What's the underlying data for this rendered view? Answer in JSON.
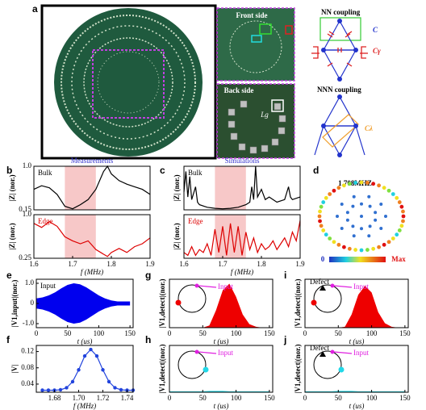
{
  "figure": {
    "panel_labels": [
      "a",
      "b",
      "c",
      "d",
      "e",
      "f",
      "g",
      "h",
      "i",
      "j"
    ],
    "photo_labels": [
      "Front side",
      "Back side",
      "Lg"
    ],
    "diagram_labels": [
      "NN coupling",
      "NNN coupling",
      "C",
      "Cγ",
      "Cλ"
    ],
    "d_title": "1.708MHZ",
    "colorbar_labels": [
      "0",
      "Max"
    ]
  },
  "chart_data": [
    {
      "type": "line",
      "title": "Measurements",
      "title_color": "#3333cc",
      "annotation": "Bulk",
      "annotation_color": "#000000",
      "ylabel": "|Z| (nor.)",
      "color": "#000000",
      "highlight": [
        1.68,
        1.76
      ],
      "highlight_color": "#f7c8c8",
      "x": [
        1.6,
        1.62,
        1.64,
        1.66,
        1.68,
        1.7,
        1.72,
        1.74,
        1.76,
        1.78,
        1.79,
        1.8,
        1.82,
        1.84,
        1.86,
        1.88,
        1.9
      ],
      "values": [
        0.55,
        0.62,
        0.58,
        0.45,
        0.22,
        0.17,
        0.25,
        0.35,
        0.55,
        0.9,
        1.0,
        0.85,
        0.72,
        0.65,
        0.6,
        0.55,
        0.45
      ],
      "xlim": [
        1.6,
        1.9
      ],
      "ylim": [
        0.15,
        1.0
      ],
      "yticks": [
        0.15,
        {
          "value": 1.0,
          "label": "1.0"
        }
      ]
    },
    {
      "type": "line",
      "annotation": "Edge",
      "annotation_color": "#dd0000",
      "ylabel": "|Z| (nor.)",
      "xlabel": "f (MHz)",
      "color": "#dd0000",
      "highlight": [
        1.68,
        1.76
      ],
      "highlight_color": "#f7c8c8",
      "x": [
        1.6,
        1.62,
        1.64,
        1.66,
        1.68,
        1.7,
        1.72,
        1.74,
        1.76,
        1.78,
        1.79,
        1.8,
        1.82,
        1.84,
        1.86,
        1.88,
        1.9
      ],
      "values": [
        0.85,
        0.78,
        0.88,
        0.8,
        0.62,
        0.55,
        0.5,
        0.55,
        0.4,
        0.32,
        0.28,
        0.35,
        0.42,
        0.35,
        0.45,
        0.5,
        0.6
      ],
      "xlim": [
        1.6,
        1.9
      ],
      "ylim": [
        0.25,
        1.0
      ],
      "yticks": [
        0.25,
        {
          "value": 1.0,
          "label": "1.0"
        }
      ],
      "xticks": [
        1.6,
        1.7,
        1.8,
        1.9
      ]
    },
    {
      "type": "line",
      "title": "Simulations",
      "title_color": "#3333cc",
      "annotation": "Bulk",
      "annotation_color": "#000000",
      "ylabel": "|Z| (nor.)",
      "color": "#000000",
      "highlight": [
        1.68,
        1.76
      ],
      "highlight_color": "#f7c8c8",
      "x": [
        1.6,
        1.605,
        1.61,
        1.615,
        1.62,
        1.63,
        1.635,
        1.64,
        1.66,
        1.68,
        1.7,
        1.72,
        1.74,
        1.76,
        1.77,
        1.775,
        1.78,
        1.785,
        1.79,
        1.8,
        1.81,
        1.82,
        1.84,
        1.86,
        1.87,
        1.875,
        1.88,
        1.9
      ],
      "values": [
        0.5,
        0.9,
        0.4,
        0.8,
        0.35,
        0.6,
        0.3,
        0.25,
        0.2,
        0.18,
        0.17,
        0.18,
        0.2,
        0.25,
        0.3,
        0.6,
        0.35,
        1.0,
        0.4,
        0.55,
        0.35,
        0.4,
        0.3,
        0.35,
        0.6,
        0.4,
        0.35,
        0.4
      ],
      "xlim": [
        1.6,
        1.9
      ],
      "ylim": [
        0.15,
        1.0
      ]
    },
    {
      "type": "line",
      "annotation": "Edge",
      "annotation_color": "#dd0000",
      "ylabel": "|Z| (nor.)",
      "xlabel": "f (MHz)",
      "color": "#dd0000",
      "highlight": [
        1.68,
        1.76
      ],
      "highlight_color": "#f7c8c8",
      "x": [
        1.6,
        1.61,
        1.62,
        1.63,
        1.64,
        1.65,
        1.66,
        1.67,
        1.68,
        1.69,
        1.7,
        1.71,
        1.72,
        1.73,
        1.74,
        1.75,
        1.76,
        1.77,
        1.78,
        1.79,
        1.8,
        1.81,
        1.82,
        1.83,
        1.84,
        1.85,
        1.86,
        1.87,
        1.88,
        1.89,
        1.9
      ],
      "values": [
        0.35,
        0.3,
        0.45,
        0.3,
        0.4,
        0.35,
        0.5,
        0.3,
        0.75,
        0.35,
        0.8,
        0.3,
        0.85,
        0.35,
        0.8,
        0.3,
        0.7,
        0.4,
        0.6,
        0.35,
        0.5,
        0.4,
        0.45,
        0.55,
        0.4,
        0.5,
        0.6,
        0.45,
        0.7,
        0.55,
        0.9
      ],
      "xlim": [
        1.6,
        1.9
      ],
      "ylim": [
        0.25,
        1.0
      ],
      "xticks": [
        1.6,
        1.7,
        1.8,
        1.9
      ]
    },
    {
      "type": "envelope",
      "annotation": "Input",
      "annotation_color": "#000000",
      "ylabel": "|V1,input|(nor.)",
      "xlabel": "t (us)",
      "color": "#0000ee",
      "x": [
        0,
        10,
        20,
        30,
        40,
        50,
        60,
        70,
        80,
        90,
        100,
        110,
        120,
        130,
        140,
        150
      ],
      "values": [
        0.25,
        0.3,
        0.4,
        0.55,
        0.75,
        0.92,
        1.0,
        0.95,
        0.8,
        0.6,
        0.4,
        0.25,
        0.15,
        0.1,
        0.1,
        0.1
      ],
      "xlim": [
        0,
        155
      ],
      "ylim": [
        -1.2,
        1.2
      ],
      "yticks": [
        {
          "value": -1.0,
          "label": "-1.0"
        },
        0,
        {
          "value": 1.0,
          "label": "1.0"
        }
      ],
      "xticks": [
        0,
        50,
        100,
        150
      ]
    },
    {
      "type": "line",
      "markers": true,
      "ylabel": "|V|",
      "xlabel": "f (MHz)",
      "color": "#2244dd",
      "x": [
        1.67,
        1.675,
        1.68,
        1.685,
        1.69,
        1.695,
        1.7,
        1.705,
        1.71,
        1.715,
        1.72,
        1.725,
        1.73,
        1.735,
        1.74,
        1.745
      ],
      "values": [
        0.025,
        0.025,
        0.025,
        0.026,
        0.031,
        0.046,
        0.075,
        0.109,
        0.125,
        0.109,
        0.075,
        0.046,
        0.031,
        0.026,
        0.025,
        0.025
      ],
      "xlim": [
        1.665,
        1.745
      ],
      "ylim": [
        0.02,
        0.135
      ],
      "yticks": [
        0.04,
        0.08,
        0.12
      ],
      "xticks": [
        1.68,
        {
          "value": 1.7,
          "label": "1.70"
        },
        1.72,
        1.74
      ]
    },
    {
      "type": "area",
      "inset_labels": [
        "Input"
      ],
      "ylabel": "|V1,detect|(nor.)",
      "xlabel": "t (us)",
      "color": "#ee0000",
      "x": [
        0,
        10,
        20,
        30,
        40,
        50,
        60,
        70,
        80,
        90,
        100,
        110,
        120,
        130,
        140,
        150
      ],
      "values": [
        0,
        0,
        0,
        0,
        0,
        0,
        0.05,
        0.4,
        0.85,
        1.0,
        0.7,
        0.3,
        0.08,
        0.02,
        0,
        0
      ],
      "xlim": [
        0,
        155
      ],
      "ylim": [
        0,
        1.1
      ],
      "xticks": [
        0,
        50,
        100,
        150
      ]
    },
    {
      "type": "area",
      "inset_labels": [
        "Input"
      ],
      "ylabel": "|V1,detect|(nor.)",
      "xlabel": "t (us)",
      "color": "#22d8e8",
      "x": [
        0,
        10,
        20,
        30,
        40,
        50,
        60,
        70,
        80,
        90,
        100,
        110,
        120,
        130,
        140,
        150
      ],
      "values": [
        0.02,
        0.02,
        0.02,
        0.02,
        0.02,
        0.02,
        0.03,
        0.03,
        0.03,
        0.02,
        0.02,
        0.02,
        0.02,
        0.02,
        0.02,
        0.02
      ],
      "xlim": [
        0,
        155
      ],
      "ylim": [
        0,
        1.1
      ],
      "xticks": [
        0,
        50,
        100,
        150
      ]
    },
    {
      "type": "area",
      "inset_labels": [
        "Defect",
        "Input"
      ],
      "ylabel": "|V1,detect|(nor.)",
      "xlabel": "t (us)",
      "color": "#ee0000",
      "x": [
        0,
        10,
        20,
        30,
        40,
        50,
        60,
        70,
        80,
        90,
        100,
        110,
        120,
        130,
        140,
        150
      ],
      "values": [
        0,
        0,
        0,
        0,
        0,
        0,
        0.02,
        0.3,
        0.75,
        0.95,
        0.8,
        0.35,
        0.1,
        0.02,
        0,
        0
      ],
      "xlim": [
        0,
        155
      ],
      "ylim": [
        0,
        1.1
      ],
      "xticks": [
        0,
        50,
        100,
        150
      ]
    },
    {
      "type": "area",
      "inset_labels": [
        "Defect",
        "Input"
      ],
      "ylabel": "|V1,detect|(nor.)",
      "xlabel": "t (us)",
      "color": "#22d8e8",
      "x": [
        0,
        10,
        20,
        30,
        40,
        50,
        60,
        70,
        80,
        90,
        100,
        110,
        120,
        130,
        140,
        150
      ],
      "values": [
        0.02,
        0.02,
        0.02,
        0.02,
        0.02,
        0.03,
        0.03,
        0.03,
        0.02,
        0.02,
        0.02,
        0.02,
        0.02,
        0.02,
        0.02,
        0.02
      ],
      "xlim": [
        0,
        155
      ],
      "ylim": [
        0,
        1.1
      ],
      "xticks": [
        0,
        50,
        100,
        150
      ]
    }
  ]
}
